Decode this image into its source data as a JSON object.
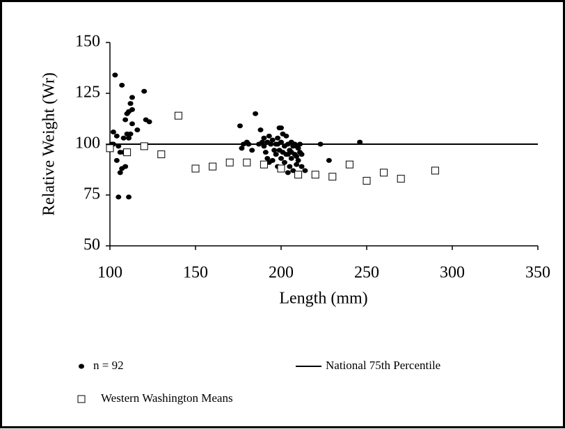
{
  "chart_data": {
    "type": "scatter",
    "x_label": "Length (mm)",
    "y_label": "Relative Weight (Wr)",
    "xlim": [
      100,
      350
    ],
    "ylim": [
      50,
      150
    ],
    "xticks": [
      100,
      150,
      200,
      250,
      300,
      350
    ],
    "yticks": [
      50,
      75,
      100,
      125,
      150
    ],
    "series": [
      {
        "name": "n = 92",
        "color": "#000000",
        "marker": "dot",
        "x": [
          101,
          102,
          103,
          104,
          104,
          105,
          106,
          106,
          107,
          107,
          108,
          109,
          109,
          110,
          110,
          111,
          111,
          111,
          112,
          112,
          113,
          113,
          113,
          116,
          120,
          121,
          123,
          102,
          108,
          105,
          176,
          177,
          178,
          180,
          181,
          183,
          185,
          188,
          189,
          190,
          190,
          191,
          192,
          193,
          193,
          194,
          195,
          196,
          197,
          197,
          198,
          198,
          199,
          199,
          200,
          200,
          200,
          201,
          202,
          202,
          203,
          203,
          204,
          204,
          205,
          205,
          206,
          206,
          207,
          207,
          208,
          208,
          209,
          209,
          210,
          210,
          211,
          211,
          212,
          212,
          214,
          223,
          228,
          246,
          195,
          187,
          192,
          201,
          209,
          204,
          198,
          206
        ],
        "values": [
          100,
          106,
          134,
          104,
          92,
          74,
          96,
          86,
          88,
          129,
          96,
          112,
          89,
          105,
          115,
          116,
          74,
          103,
          105,
          120,
          110,
          123,
          117,
          107,
          126,
          112,
          111,
          100,
          103,
          99,
          109,
          98,
          100,
          101,
          100,
          97,
          115,
          107,
          101,
          99,
          103,
          96,
          93,
          104,
          91,
          100,
          102,
          97,
          95,
          100,
          103,
          89,
          108,
          97,
          93,
          101,
          108,
          105,
          99,
          91,
          95,
          104,
          86,
          100,
          97,
          89,
          101,
          93,
          99,
          87,
          95,
          100,
          94,
          90,
          98,
          92,
          96,
          100,
          95,
          89,
          87,
          100,
          92,
          101,
          92,
          100,
          101,
          96,
          99,
          95,
          100,
          96
        ]
      },
      {
        "name": "National 75th Percentile",
        "color": "#000000",
        "marker": "line",
        "x": [
          100,
          350
        ],
        "values": [
          100,
          100
        ]
      },
      {
        "name": "Western Washington Means",
        "color": "#000000",
        "marker": "square",
        "x": [
          100,
          110,
          120,
          130,
          140,
          150,
          160,
          170,
          180,
          190,
          200,
          210,
          220,
          230,
          240,
          250,
          260,
          270,
          290
        ],
        "values": [
          98,
          96,
          99,
          95,
          114,
          88,
          89,
          91,
          91,
          90,
          88,
          85,
          85,
          84,
          90,
          82,
          86,
          83,
          87
        ]
      }
    ]
  }
}
